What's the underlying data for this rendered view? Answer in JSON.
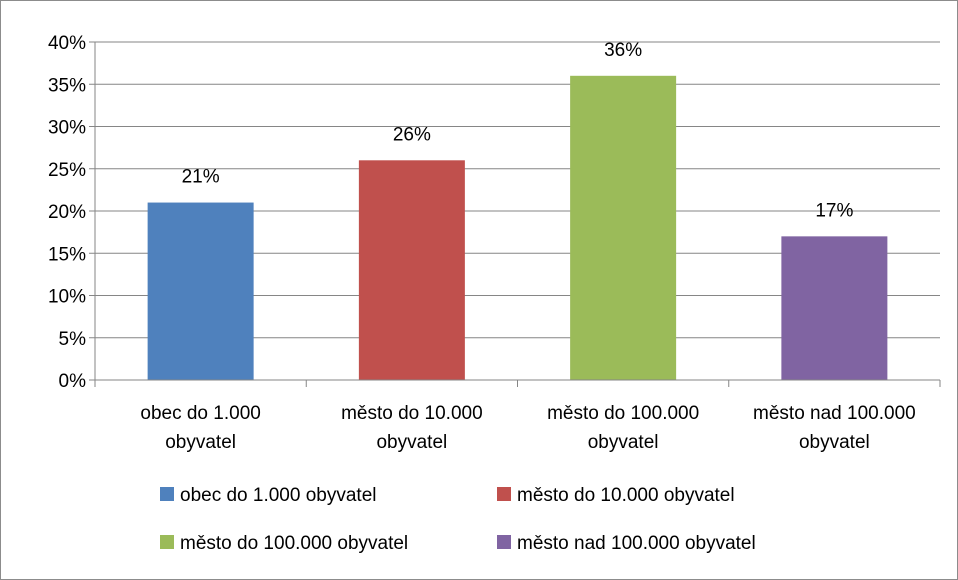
{
  "chart_data": {
    "type": "bar",
    "categories": [
      [
        "obec do 1.000",
        "obyvatel"
      ],
      [
        "město do 10.000",
        "obyvatel"
      ],
      [
        "město do 100.000",
        "obyvatel"
      ],
      [
        "město nad 100.000",
        "obyvatel"
      ]
    ],
    "values": [
      21,
      26,
      36,
      17
    ],
    "data_labels": [
      "21%",
      "26%",
      "36%",
      "17%"
    ],
    "colors": [
      "#4f81bd",
      "#c0504d",
      "#9bbb59",
      "#8064a2"
    ],
    "ylim": [
      0,
      40
    ],
    "ytick_step": 5,
    "ytick_labels": [
      "0%",
      "5%",
      "10%",
      "15%",
      "20%",
      "25%",
      "30%",
      "35%",
      "40%"
    ],
    "grid": true,
    "legend_position": "bottom",
    "legend": [
      "obec do 1.000 obyvatel",
      "město do 10.000 obyvatel",
      "město do 100.000 obyvatel",
      "město nad 100.000 obyvatel"
    ]
  }
}
